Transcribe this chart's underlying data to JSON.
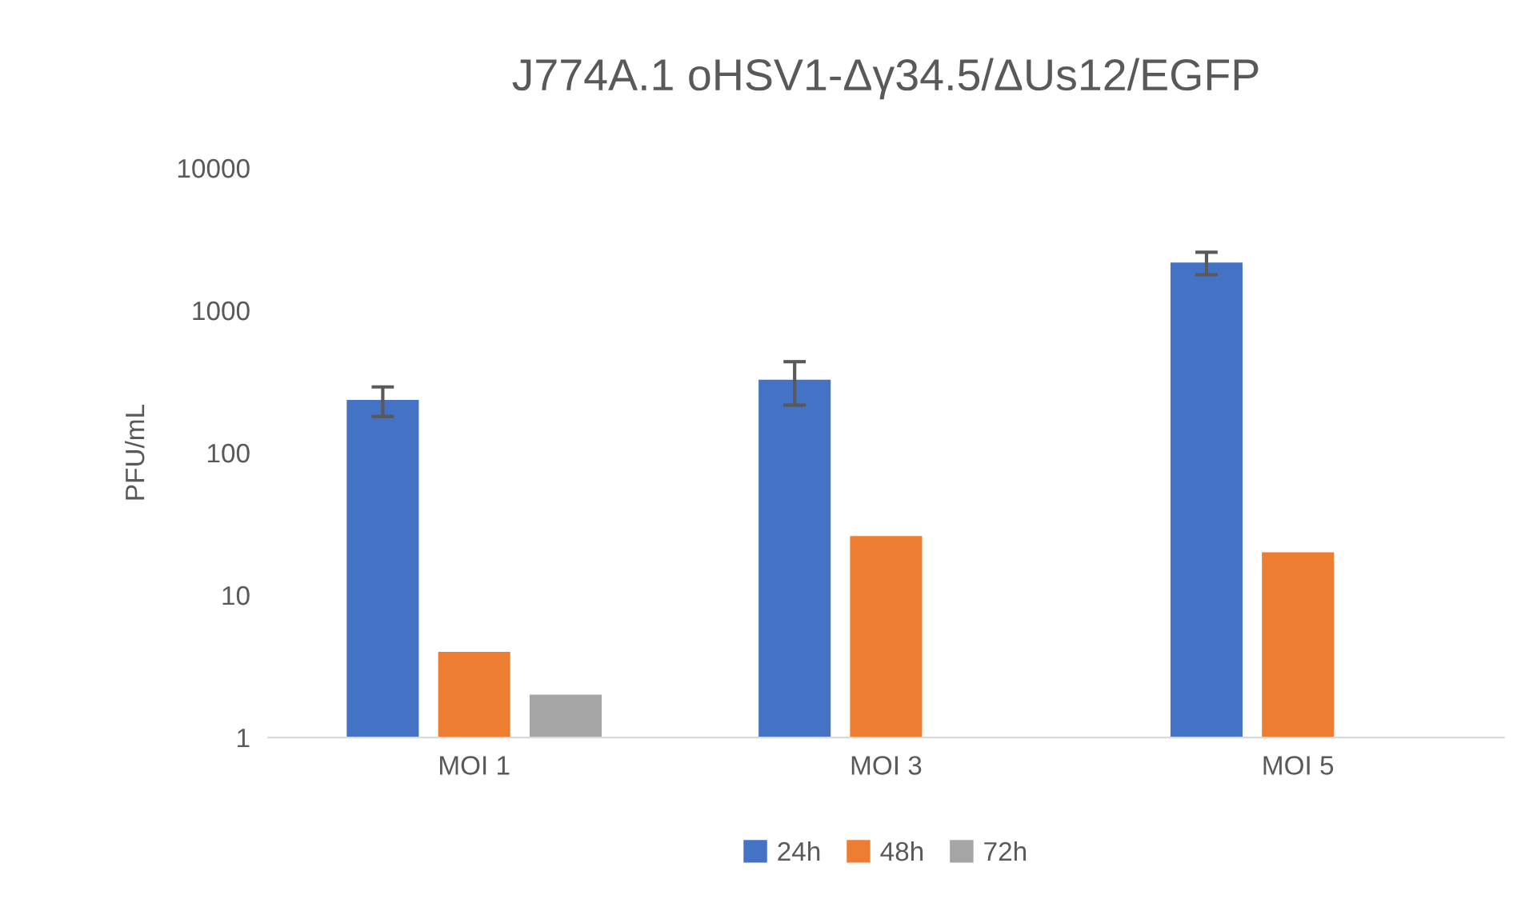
{
  "chart_data": {
    "type": "bar",
    "title": "J774A.1 oHSV1-Δγ34.5/ΔUs12/EGFP",
    "ylabel": "PFU/mL",
    "categories": [
      "MOI 1",
      "MOI 3",
      "MOI 5"
    ],
    "series": [
      {
        "name": "24h",
        "color": "#4472c4",
        "values": [
          235,
          326,
          2170
        ],
        "errors": [
          55,
          110,
          390
        ]
      },
      {
        "name": "48h",
        "color": "#ed7d31",
        "values": [
          4,
          26,
          20
        ]
      },
      {
        "name": "72h",
        "color": "#a5a5a5",
        "values": [
          2,
          null,
          null
        ]
      }
    ],
    "log": true,
    "ylim": [
      1,
      10000
    ],
    "yticks": [
      1,
      10,
      100,
      1000,
      10000
    ],
    "grid": false,
    "legend": "bottom"
  }
}
